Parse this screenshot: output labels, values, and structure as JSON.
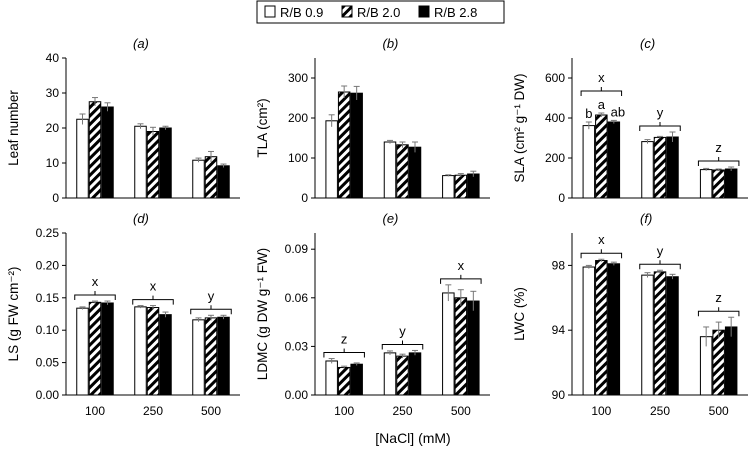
{
  "legend": {
    "items": [
      {
        "label": "R/B 0.9",
        "pattern": "open"
      },
      {
        "label": "R/B 2.0",
        "pattern": "hatched"
      },
      {
        "label": "R/B 2.8",
        "pattern": "solid"
      }
    ]
  },
  "x_title": "[NaCl] (mM)",
  "chart_data": [
    {
      "type": "bar",
      "panel": "(a)",
      "ylabel": "Leaf number",
      "categories": [
        "100",
        "250",
        "500"
      ],
      "ylim": [
        0,
        40
      ],
      "yticks": [
        "0",
        "10",
        "20",
        "30",
        "40"
      ],
      "series": [
        {
          "name": "R/B 0.9",
          "values": [
            22.5,
            20.5,
            10.8
          ],
          "errors": [
            1.5,
            0.7,
            0.6
          ]
        },
        {
          "name": "R/B 2.0",
          "values": [
            27.5,
            19.0,
            11.8
          ],
          "errors": [
            1.2,
            1.2,
            1.5
          ]
        },
        {
          "name": "R/B 2.8",
          "values": [
            26.0,
            20.0,
            9.2
          ],
          "errors": [
            1.2,
            0.5,
            0.5
          ]
        }
      ]
    },
    {
      "type": "bar",
      "panel": "(b)",
      "ylabel": "TLA (cm²)",
      "categories": [
        "100",
        "250",
        "500"
      ],
      "ylim": [
        0,
        350
      ],
      "yticks": [
        "0",
        "100",
        "200",
        "300"
      ],
      "series": [
        {
          "name": "R/B 0.9",
          "values": [
            193,
            140,
            56
          ],
          "errors": [
            15,
            4,
            2
          ]
        },
        {
          "name": "R/B 2.0",
          "values": [
            265,
            133,
            57
          ],
          "errors": [
            15,
            7,
            4
          ]
        },
        {
          "name": "R/B 2.8",
          "values": [
            262,
            127,
            60
          ],
          "errors": [
            17,
            13,
            7
          ]
        }
      ]
    },
    {
      "type": "bar",
      "panel": "(c)",
      "ylabel": "SLA (cm² g⁻¹ DW)",
      "categories": [
        "100",
        "250",
        "500"
      ],
      "ylim": [
        0,
        700
      ],
      "yticks": [
        "0",
        "200",
        "400",
        "600"
      ],
      "series": [
        {
          "name": "R/B 0.9",
          "values": [
            362,
            282,
            142
          ],
          "errors": [
            18,
            10,
            6
          ]
        },
        {
          "name": "R/B 2.0",
          "values": [
            415,
            303,
            140
          ],
          "errors": [
            10,
            5,
            5
          ]
        },
        {
          "name": "R/B 2.8",
          "values": [
            380,
            305,
            145
          ],
          "errors": [
            8,
            25,
            10
          ]
        }
      ],
      "annotations": [
        {
          "text": "x",
          "group": 0
        },
        {
          "text": "y",
          "group": 1
        },
        {
          "text": "z",
          "group": 2
        },
        {
          "text": "b",
          "group": 0,
          "bar": 0
        },
        {
          "text": "a",
          "group": 0,
          "bar": 1
        },
        {
          "text": "ab",
          "group": 0,
          "bar": 2
        }
      ]
    },
    {
      "type": "bar",
      "panel": "(d)",
      "ylabel": "LS (g FW cm⁻²)",
      "categories": [
        "100",
        "250",
        "500"
      ],
      "ylim": [
        0,
        0.25
      ],
      "yticks": [
        "0.00",
        "0.05",
        "0.10",
        "0.15",
        "0.20",
        "0.25"
      ],
      "series": [
        {
          "name": "R/B 0.9",
          "values": [
            0.134,
            0.136,
            0.116
          ],
          "errors": [
            0.002,
            0.002,
            0.003
          ]
        },
        {
          "name": "R/B 2.0",
          "values": [
            0.143,
            0.135,
            0.119
          ],
          "errors": [
            0.002,
            0.003,
            0.004
          ]
        },
        {
          "name": "R/B 2.8",
          "values": [
            0.142,
            0.124,
            0.12
          ],
          "errors": [
            0.003,
            0.004,
            0.003
          ]
        }
      ],
      "annotations": [
        {
          "text": "x",
          "group": 0
        },
        {
          "text": "x",
          "group": 1
        },
        {
          "text": "y",
          "group": 2
        }
      ]
    },
    {
      "type": "bar",
      "panel": "(e)",
      "ylabel": "LDMC  (g DW g⁻¹ FW)",
      "categories": [
        "100",
        "250",
        "500"
      ],
      "ylim": [
        0,
        0.1
      ],
      "yticks": [
        "0.00",
        "0.03",
        "0.06",
        "0.09"
      ],
      "series": [
        {
          "name": "R/B 0.9",
          "values": [
            0.021,
            0.026,
            0.063
          ],
          "errors": [
            0.0015,
            0.0012,
            0.005
          ]
        },
        {
          "name": "R/B 2.0",
          "values": [
            0.017,
            0.024,
            0.06
          ],
          "errors": [
            0.0008,
            0.0012,
            0.005
          ]
        },
        {
          "name": "R/B 2.8",
          "values": [
            0.019,
            0.026,
            0.058
          ],
          "errors": [
            0.0008,
            0.0015,
            0.006
          ]
        }
      ],
      "annotations": [
        {
          "text": "z",
          "group": 0
        },
        {
          "text": "y",
          "group": 1
        },
        {
          "text": "x",
          "group": 2
        }
      ]
    },
    {
      "type": "bar",
      "panel": "(f)",
      "ylabel": "LWC (%)",
      "categories": [
        "100",
        "250",
        "500"
      ],
      "ylim": [
        90,
        100
      ],
      "yticks": [
        "90",
        "94",
        "98"
      ],
      "series": [
        {
          "name": "R/B 0.9",
          "values": [
            97.9,
            97.4,
            93.6
          ],
          "errors": [
            0.1,
            0.15,
            0.6
          ]
        },
        {
          "name": "R/B 2.0",
          "values": [
            98.3,
            97.6,
            94.0
          ],
          "errors": [
            0.08,
            0.1,
            0.5
          ]
        },
        {
          "name": "R/B 2.8",
          "values": [
            98.1,
            97.3,
            94.2
          ],
          "errors": [
            0.1,
            0.15,
            0.6
          ]
        }
      ],
      "annotations": [
        {
          "text": "x",
          "group": 0
        },
        {
          "text": "y",
          "group": 1
        },
        {
          "text": "z",
          "group": 2
        }
      ]
    }
  ]
}
